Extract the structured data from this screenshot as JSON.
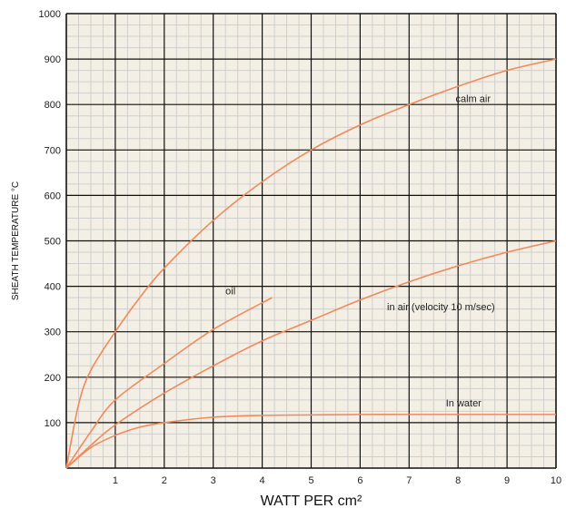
{
  "chart_data": {
    "type": "line",
    "title": "",
    "xlabel": "WATT PER cm²",
    "ylabel": "SHEATH TEMPERATURE °C",
    "xlim": [
      0,
      10
    ],
    "ylim": [
      0,
      1000
    ],
    "x_ticks": [
      1,
      2,
      3,
      4,
      5,
      6,
      7,
      8,
      9,
      10
    ],
    "y_ticks": [
      100,
      200,
      300,
      400,
      500,
      600,
      700,
      800,
      900,
      1000
    ],
    "grid": true,
    "colors": {
      "curve": "#f08a5d",
      "grid_major": "#111111",
      "grid_minor": "#cfcfcf",
      "background": "#f3efe4"
    },
    "series": [
      {
        "name": "calm air",
        "x": [
          0,
          0.25,
          0.5,
          1,
          1.5,
          2,
          3,
          4,
          5,
          6,
          7,
          8,
          9,
          10
        ],
        "y": [
          0,
          140,
          215,
          300,
          375,
          440,
          545,
          630,
          700,
          755,
          800,
          840,
          875,
          900
        ]
      },
      {
        "name": "oil",
        "x": [
          0,
          0.5,
          1,
          2,
          3,
          4.2
        ],
        "y": [
          0,
          80,
          150,
          230,
          305,
          375
        ]
      },
      {
        "name": "in air (velocity 10 m/sec)",
        "x": [
          0,
          0.5,
          1,
          2,
          3,
          4,
          5,
          6,
          7,
          8,
          9,
          10
        ],
        "y": [
          0,
          50,
          95,
          165,
          225,
          280,
          325,
          370,
          410,
          445,
          475,
          500
        ]
      },
      {
        "name": "In water",
        "x": [
          0,
          0.5,
          1,
          1.5,
          2,
          3,
          4,
          5,
          6,
          7,
          8,
          9,
          10
        ],
        "y": [
          0,
          45,
          72,
          90,
          100,
          112,
          116,
          117,
          118,
          118,
          118,
          118,
          118
        ]
      }
    ]
  }
}
